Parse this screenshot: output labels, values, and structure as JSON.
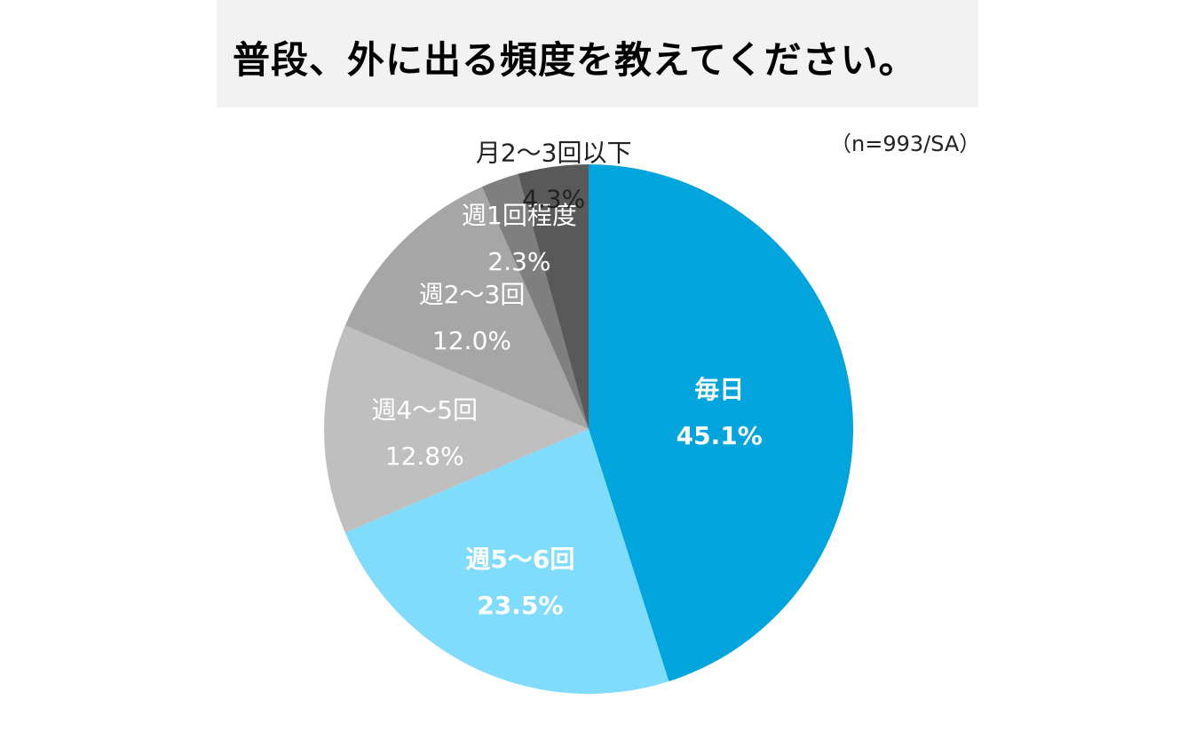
{
  "title": "普段、外に出る頻度を教えてください。",
  "sample_note": "（n=993/SA）",
  "chart_data": {
    "type": "pie",
    "title": "普段、外に出る頻度を教えてください。",
    "start": "12 o'clock",
    "direction": "clockwise",
    "slices": [
      {
        "label": "毎日",
        "value": 45.1,
        "value_label": "45.1%",
        "color": "#00a5de",
        "text_color": "#ffffff",
        "bold": true
      },
      {
        "label": "週5〜6回",
        "value": 23.5,
        "value_label": "23.5%",
        "color": "#7fdcfd",
        "text_color": "#ffffff",
        "bold": true
      },
      {
        "label": "週4〜5回",
        "value": 12.8,
        "value_label": "12.8%",
        "color": "#bfbfbf",
        "text_color": "#ffffff",
        "bold": false
      },
      {
        "label": "週2〜3回",
        "value": 12.0,
        "value_label": "12.0%",
        "color": "#a6a6a6",
        "text_color": "#ffffff",
        "bold": false
      },
      {
        "label": "週1回程度",
        "value": 2.3,
        "value_label": "2.3%",
        "color": "#7f7f7f",
        "text_color": "#ffffff",
        "bold": false
      },
      {
        "label": "月2〜3回以下",
        "value": 4.3,
        "value_label": "4.3%",
        "color": "#595959",
        "text_color": "#222222",
        "bold": false
      }
    ]
  }
}
